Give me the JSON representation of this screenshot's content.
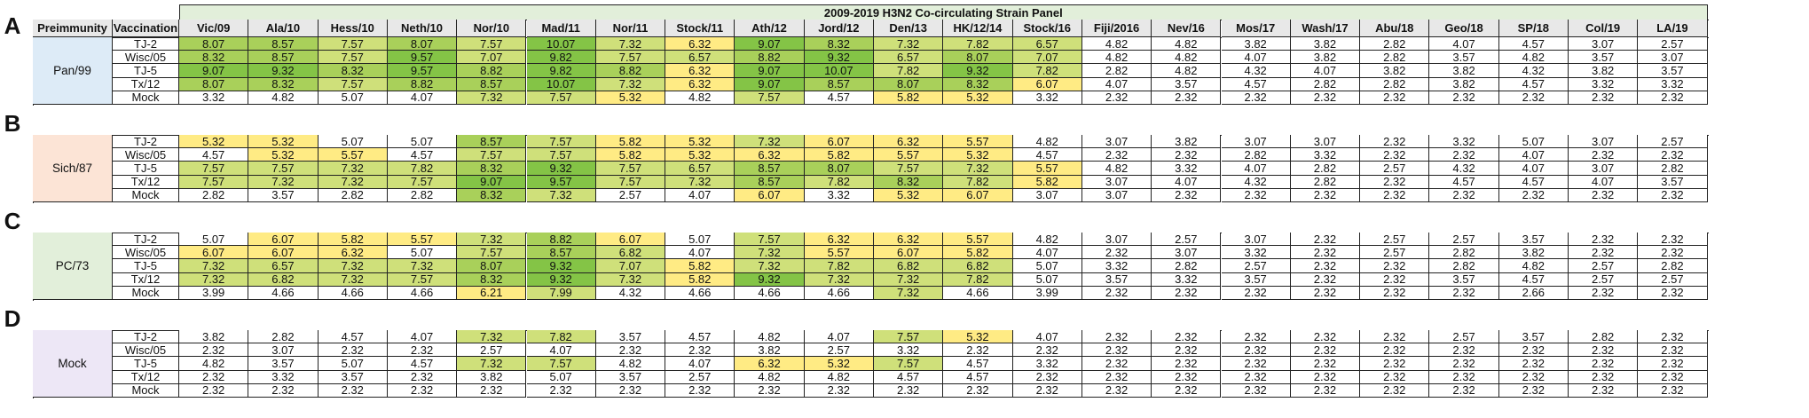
{
  "banner": "2009-2019 H3N2 Co-circulating Strain Panel",
  "col_headers": {
    "preimmunity": "Preimmunity",
    "vaccination": "Vaccination",
    "strains": [
      "Vic/09",
      "Ala/10",
      "Hess/10",
      "Neth/10",
      "Nor/10",
      "Mad/11",
      "Nor/11",
      "Stock/11",
      "Ath/12",
      "Jord/12",
      "Den/13",
      "HK/12/14",
      "Stock/16",
      "Fiji/2016",
      "Nev/16",
      "Mos/17",
      "Wash/17",
      "Abu/18",
      "Geo/18",
      "SP/18",
      "Col/19",
      "LA/19"
    ]
  },
  "colors": {
    "white": "#ffffff",
    "yellow": "#ffeb84",
    "light_green": "#cfe07a",
    "green": "#a9d05a",
    "dark_green": "#84c446",
    "preA": "#ddebf7",
    "preB": "#fce4d6",
    "preC": "#e2efda",
    "preD": "#ede7f6"
  },
  "panels": [
    {
      "letter": "A",
      "preimmunity": "Pan/99",
      "rows": [
        {
          "vaccination": "TJ-2",
          "values": [
            "8.07",
            "8.57",
            "7.57",
            "8.07",
            "7.57",
            "10.07",
            "7.32",
            "6.32",
            "9.07",
            "8.32",
            "7.32",
            "7.82",
            "6.57",
            "4.82",
            "4.82",
            "3.82",
            "3.82",
            "2.82",
            "4.07",
            "4.57",
            "3.07",
            "2.57"
          ]
        },
        {
          "vaccination": "Wisc/05",
          "values": [
            "8.32",
            "8.57",
            "7.57",
            "9.57",
            "7.07",
            "9.82",
            "7.57",
            "6.57",
            "8.82",
            "9.32",
            "6.57",
            "8.07",
            "7.07",
            "4.82",
            "4.82",
            "4.07",
            "3.82",
            "2.82",
            "3.57",
            "4.82",
            "3.57",
            "3.07"
          ]
        },
        {
          "vaccination": "TJ-5",
          "values": [
            "9.07",
            "9.32",
            "8.32",
            "9.57",
            "8.82",
            "9.82",
            "8.82",
            "6.32",
            "9.07",
            "10.07",
            "7.82",
            "9.32",
            "7.82",
            "2.82",
            "4.82",
            "4.32",
            "4.07",
            "3.82",
            "3.82",
            "4.32",
            "3.82",
            "3.57"
          ]
        },
        {
          "vaccination": "Tx/12",
          "values": [
            "8.07",
            "8.32",
            "7.57",
            "8.82",
            "8.57",
            "10.07",
            "7.32",
            "6.32",
            "9.07",
            "8.57",
            "8.07",
            "8.32",
            "6.07",
            "4.07",
            "3.57",
            "4.57",
            "2.82",
            "2.82",
            "3.82",
            "4.57",
            "3.32",
            "3.32"
          ]
        },
        {
          "vaccination": "Mock",
          "values": [
            "3.32",
            "4.82",
            "5.07",
            "4.07",
            "7.32",
            "7.57",
            "5.32",
            "4.82",
            "7.57",
            "4.57",
            "5.82",
            "5.32",
            "3.32",
            "2.32",
            "2.32",
            "2.32",
            "2.32",
            "2.32",
            "2.32",
            "2.32",
            "2.32",
            "2.32"
          ]
        }
      ]
    },
    {
      "letter": "B",
      "preimmunity": "Sich/87",
      "rows": [
        {
          "vaccination": "TJ-2",
          "values": [
            "5.32",
            "5.32",
            "5.07",
            "5.07",
            "8.57",
            "7.57",
            "5.82",
            "5.32",
            "7.32",
            "6.07",
            "6.32",
            "5.57",
            "4.82",
            "3.07",
            "3.82",
            "3.07",
            "3.07",
            "2.32",
            "3.32",
            "5.07",
            "3.07",
            "2.57"
          ]
        },
        {
          "vaccination": "Wisc/05",
          "values": [
            "4.57",
            "5.32",
            "5.57",
            "4.57",
            "7.57",
            "7.57",
            "5.82",
            "5.32",
            "6.32",
            "5.82",
            "5.57",
            "5.32",
            "4.57",
            "2.32",
            "2.32",
            "2.82",
            "3.32",
            "2.32",
            "2.32",
            "4.07",
            "2.32",
            "2.32"
          ]
        },
        {
          "vaccination": "TJ-5",
          "values": [
            "7.57",
            "7.57",
            "7.32",
            "7.82",
            "8.32",
            "9.32",
            "7.57",
            "6.57",
            "8.57",
            "8.07",
            "7.57",
            "7.32",
            "5.57",
            "4.82",
            "3.32",
            "4.07",
            "2.82",
            "2.57",
            "4.32",
            "4.07",
            "3.07",
            "2.82"
          ]
        },
        {
          "vaccination": "Tx/12",
          "values": [
            "7.57",
            "7.32",
            "7.32",
            "7.57",
            "9.07",
            "9.57",
            "7.57",
            "7.32",
            "8.57",
            "7.82",
            "8.32",
            "7.82",
            "5.82",
            "3.07",
            "4.07",
            "4.32",
            "2.82",
            "2.32",
            "4.57",
            "4.57",
            "4.07",
            "3.57"
          ]
        },
        {
          "vaccination": "Mock",
          "values": [
            "2.82",
            "3.57",
            "2.82",
            "2.82",
            "8.32",
            "7.32",
            "2.57",
            "4.07",
            "6.07",
            "3.32",
            "5.32",
            "6.07",
            "3.07",
            "3.07",
            "2.32",
            "2.32",
            "2.32",
            "2.32",
            "2.32",
            "2.32",
            "2.32",
            "2.32"
          ]
        }
      ]
    },
    {
      "letter": "C",
      "preimmunity": "PC/73",
      "rows": [
        {
          "vaccination": "TJ-2",
          "values": [
            "5.07",
            "6.07",
            "5.82",
            "5.57",
            "7.32",
            "8.82",
            "6.07",
            "5.07",
            "7.57",
            "6.32",
            "6.32",
            "5.57",
            "4.82",
            "3.07",
            "2.57",
            "3.07",
            "2.32",
            "2.57",
            "2.57",
            "3.57",
            "2.32",
            "2.32"
          ]
        },
        {
          "vaccination": "Wisc/05",
          "values": [
            "6.07",
            "6.07",
            "6.32",
            "5.07",
            "7.57",
            "8.57",
            "6.82",
            "4.07",
            "7.32",
            "5.57",
            "6.07",
            "5.82",
            "4.07",
            "2.32",
            "3.07",
            "3.32",
            "2.32",
            "2.57",
            "2.82",
            "3.82",
            "2.32",
            "2.32"
          ]
        },
        {
          "vaccination": "TJ-5",
          "values": [
            "7.32",
            "6.57",
            "7.32",
            "7.32",
            "8.07",
            "9.32",
            "7.07",
            "5.82",
            "7.32",
            "7.82",
            "6.82",
            "6.82",
            "5.07",
            "3.32",
            "2.82",
            "2.57",
            "2.32",
            "2.32",
            "2.82",
            "4.82",
            "2.57",
            "2.82"
          ]
        },
        {
          "vaccination": "Tx/12",
          "values": [
            "7.32",
            "6.82",
            "7.32",
            "7.57",
            "8.32",
            "9.32",
            "7.32",
            "5.82",
            "9.32",
            "7.32",
            "7.32",
            "7.82",
            "5.07",
            "3.57",
            "3.32",
            "3.57",
            "2.32",
            "2.32",
            "3.57",
            "4.57",
            "2.57",
            "2.57"
          ]
        },
        {
          "vaccination": "Mock",
          "values": [
            "3.99",
            "4.66",
            "4.66",
            "4.66",
            "6.21",
            "7.99",
            "4.32",
            "4.66",
            "4.66",
            "4.66",
            "7.32",
            "4.66",
            "3.99",
            "2.32",
            "2.32",
            "2.32",
            "2.32",
            "2.32",
            "2.32",
            "2.66",
            "2.32",
            "2.32"
          ]
        }
      ]
    },
    {
      "letter": "D",
      "preimmunity": "Mock",
      "rows": [
        {
          "vaccination": "TJ-2",
          "values": [
            "3.82",
            "2.82",
            "4.57",
            "4.07",
            "7.32",
            "7.82",
            "3.57",
            "4.57",
            "4.82",
            "4.07",
            "7.57",
            "5.32",
            "4.07",
            "2.32",
            "2.32",
            "2.32",
            "2.32",
            "2.32",
            "2.57",
            "3.57",
            "2.82",
            "2.32"
          ]
        },
        {
          "vaccination": "Wisc/05",
          "values": [
            "2.32",
            "3.07",
            "2.32",
            "2.32",
            "2.57",
            "4.07",
            "2.32",
            "2.32",
            "3.82",
            "2.57",
            "3.32",
            "2.32",
            "2.32",
            "2.32",
            "2.32",
            "2.32",
            "2.32",
            "2.32",
            "2.32",
            "2.32",
            "2.32",
            "2.32"
          ]
        },
        {
          "vaccination": "TJ-5",
          "values": [
            "4.82",
            "3.57",
            "5.07",
            "4.57",
            "7.32",
            "7.57",
            "4.82",
            "4.07",
            "6.32",
            "5.32",
            "7.57",
            "4.57",
            "3.32",
            "2.32",
            "2.32",
            "2.32",
            "2.32",
            "2.32",
            "2.32",
            "2.32",
            "2.32",
            "2.32"
          ]
        },
        {
          "vaccination": "Tx/12",
          "values": [
            "2.32",
            "3.32",
            "3.57",
            "2.32",
            "3.82",
            "5.07",
            "3.57",
            "2.57",
            "4.82",
            "4.82",
            "4.57",
            "4.57",
            "2.32",
            "2.32",
            "2.32",
            "2.32",
            "2.32",
            "2.32",
            "2.32",
            "2.32",
            "2.32",
            "2.32"
          ]
        },
        {
          "vaccination": "Mock",
          "values": [
            "2.32",
            "2.32",
            "2.32",
            "2.32",
            "2.32",
            "2.32",
            "2.32",
            "2.32",
            "2.32",
            "2.32",
            "2.32",
            "2.32",
            "2.32",
            "2.32",
            "2.32",
            "2.32",
            "2.32",
            "2.32",
            "2.32",
            "2.32",
            "2.32",
            "2.32"
          ]
        }
      ]
    }
  ]
}
